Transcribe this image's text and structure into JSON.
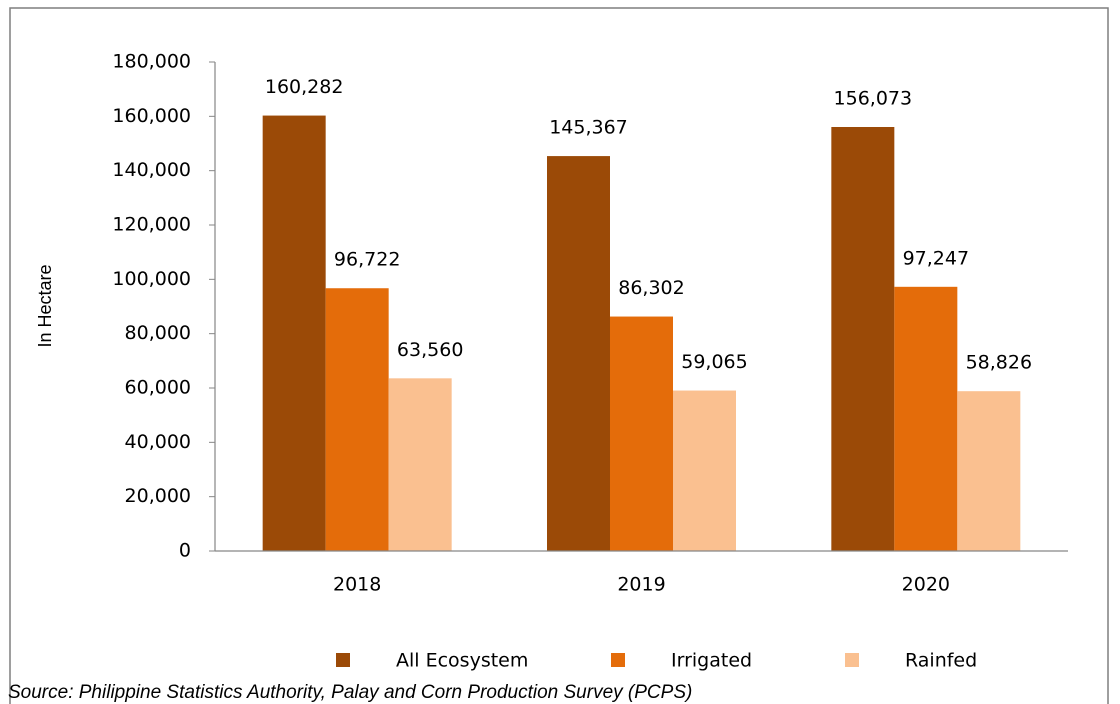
{
  "chart_data": {
    "type": "bar",
    "y_axis_label": "In Hectare",
    "source": "Source: Philippine Statistics Authority, Palay and Corn Production Survey (PCPS)",
    "categories": [
      "2018",
      "2019",
      "2020"
    ],
    "series": [
      {
        "name": "All Ecosystem",
        "color": "#9b4a07",
        "values": [
          160282,
          145367,
          156073
        ],
        "value_labels": [
          "160,282",
          "145,367",
          "156,073"
        ]
      },
      {
        "name": "Irrigated",
        "color": "#e46c0a",
        "values": [
          96722,
          86302,
          97247
        ],
        "value_labels": [
          "96,722",
          "86,302",
          "97,247"
        ]
      },
      {
        "name": "Rainfed",
        "color": "#fac090",
        "values": [
          63560,
          59065,
          58826
        ],
        "value_labels": [
          "63,560",
          "59,065",
          "58,826"
        ]
      }
    ],
    "ylim": [
      0,
      180000
    ],
    "yticks": [
      0,
      {
        "value": 20000,
        "label": "20,000"
      },
      {
        "value": 40000,
        "label": "40,000"
      },
      {
        "value": 60000,
        "label": "60,000"
      },
      {
        "value": 80000,
        "label": "80,000"
      },
      {
        "value": 100000,
        "label": "100,000"
      },
      {
        "value": 120000,
        "label": "120,000"
      },
      {
        "value": 140000,
        "label": "140,000"
      },
      {
        "value": 160000,
        "label": "160,000"
      },
      {
        "value": 180000,
        "label": "180,000"
      }
    ],
    "legend": "bottom"
  }
}
